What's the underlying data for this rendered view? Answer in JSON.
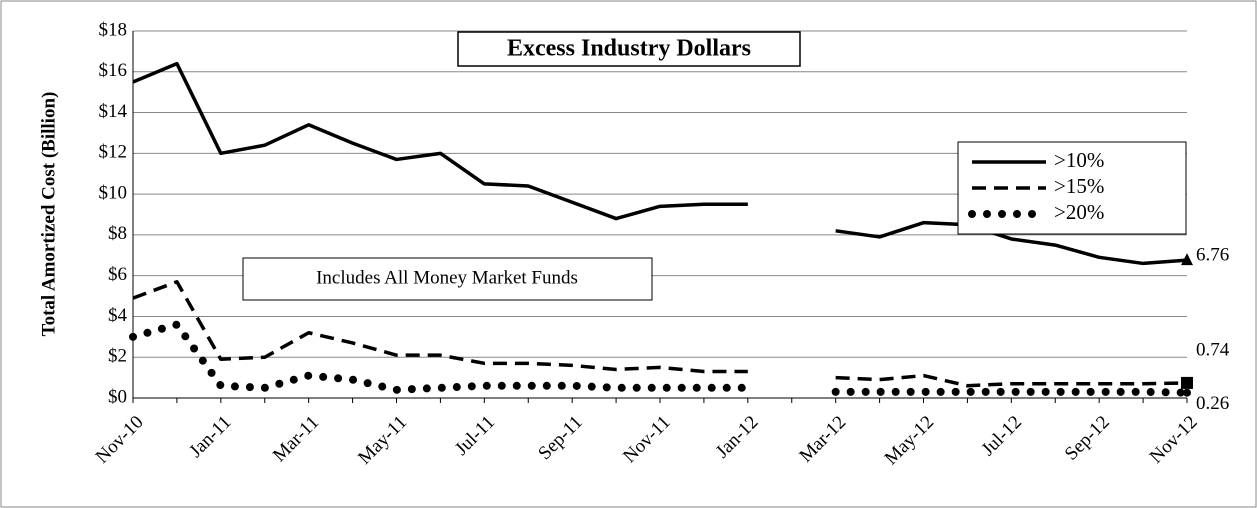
{
  "chart_data": {
    "type": "line",
    "title": "Excess Industry Dollars",
    "annotation": "Includes All Money Market Funds",
    "ylabel": "Total Amortized Cost (Billion)",
    "categories": [
      "Nov-10",
      null,
      "Jan-11",
      null,
      "Mar-11",
      null,
      "May-11",
      null,
      "Jul-11",
      null,
      "Sep-11",
      null,
      "Nov-11",
      null,
      "Jan-12",
      null,
      "Mar-12",
      null,
      "May-12",
      null,
      "Jul-12",
      null,
      "Sep-12",
      null,
      "Nov-12"
    ],
    "series": [
      {
        "name": ">10%",
        "color": "#000000",
        "style": "solid",
        "marker": "triangle",
        "values": [
          15.5,
          16.4,
          12.0,
          12.4,
          13.4,
          12.5,
          11.7,
          12.0,
          10.5,
          10.4,
          9.6,
          8.8,
          9.4,
          9.5,
          9.5,
          null,
          8.2,
          7.9,
          8.6,
          8.5,
          7.8,
          7.5,
          6.9,
          6.6,
          6.76
        ]
      },
      {
        "name": ">15%",
        "color": "#000000",
        "style": "dashed",
        "marker": "square",
        "values": [
          4.9,
          5.7,
          1.9,
          2.0,
          3.2,
          2.7,
          2.1,
          2.1,
          1.7,
          1.7,
          1.6,
          1.4,
          1.5,
          1.3,
          1.3,
          null,
          1.0,
          0.9,
          1.1,
          0.6,
          0.7,
          0.7,
          0.7,
          0.7,
          0.74
        ]
      },
      {
        "name": ">20%",
        "color": "#000000",
        "style": "dotted",
        "marker": "circle",
        "values": [
          3.0,
          3.6,
          0.6,
          0.5,
          1.1,
          0.9,
          0.4,
          0.5,
          0.6,
          0.6,
          0.6,
          0.5,
          0.5,
          0.5,
          0.5,
          null,
          0.3,
          0.3,
          0.3,
          0.3,
          0.3,
          0.3,
          0.3,
          0.3,
          0.26
        ]
      }
    ],
    "ylim": [
      0,
      18
    ],
    "yticks": [
      {
        "value": 0,
        "label": "$0"
      },
      {
        "value": 2,
        "label": "$2"
      },
      {
        "value": 4,
        "label": "$4"
      },
      {
        "value": 6,
        "label": "$6"
      },
      {
        "value": 8,
        "label": "$8"
      },
      {
        "value": 10,
        "label": "$10"
      },
      {
        "value": 12,
        "label": "$12"
      },
      {
        "value": 14,
        "label": "$14"
      },
      {
        "value": 16,
        "label": "$16"
      },
      {
        "value": 18,
        "label": "$18"
      }
    ],
    "grid": true,
    "legend": "upper right",
    "end_labels": true
  }
}
